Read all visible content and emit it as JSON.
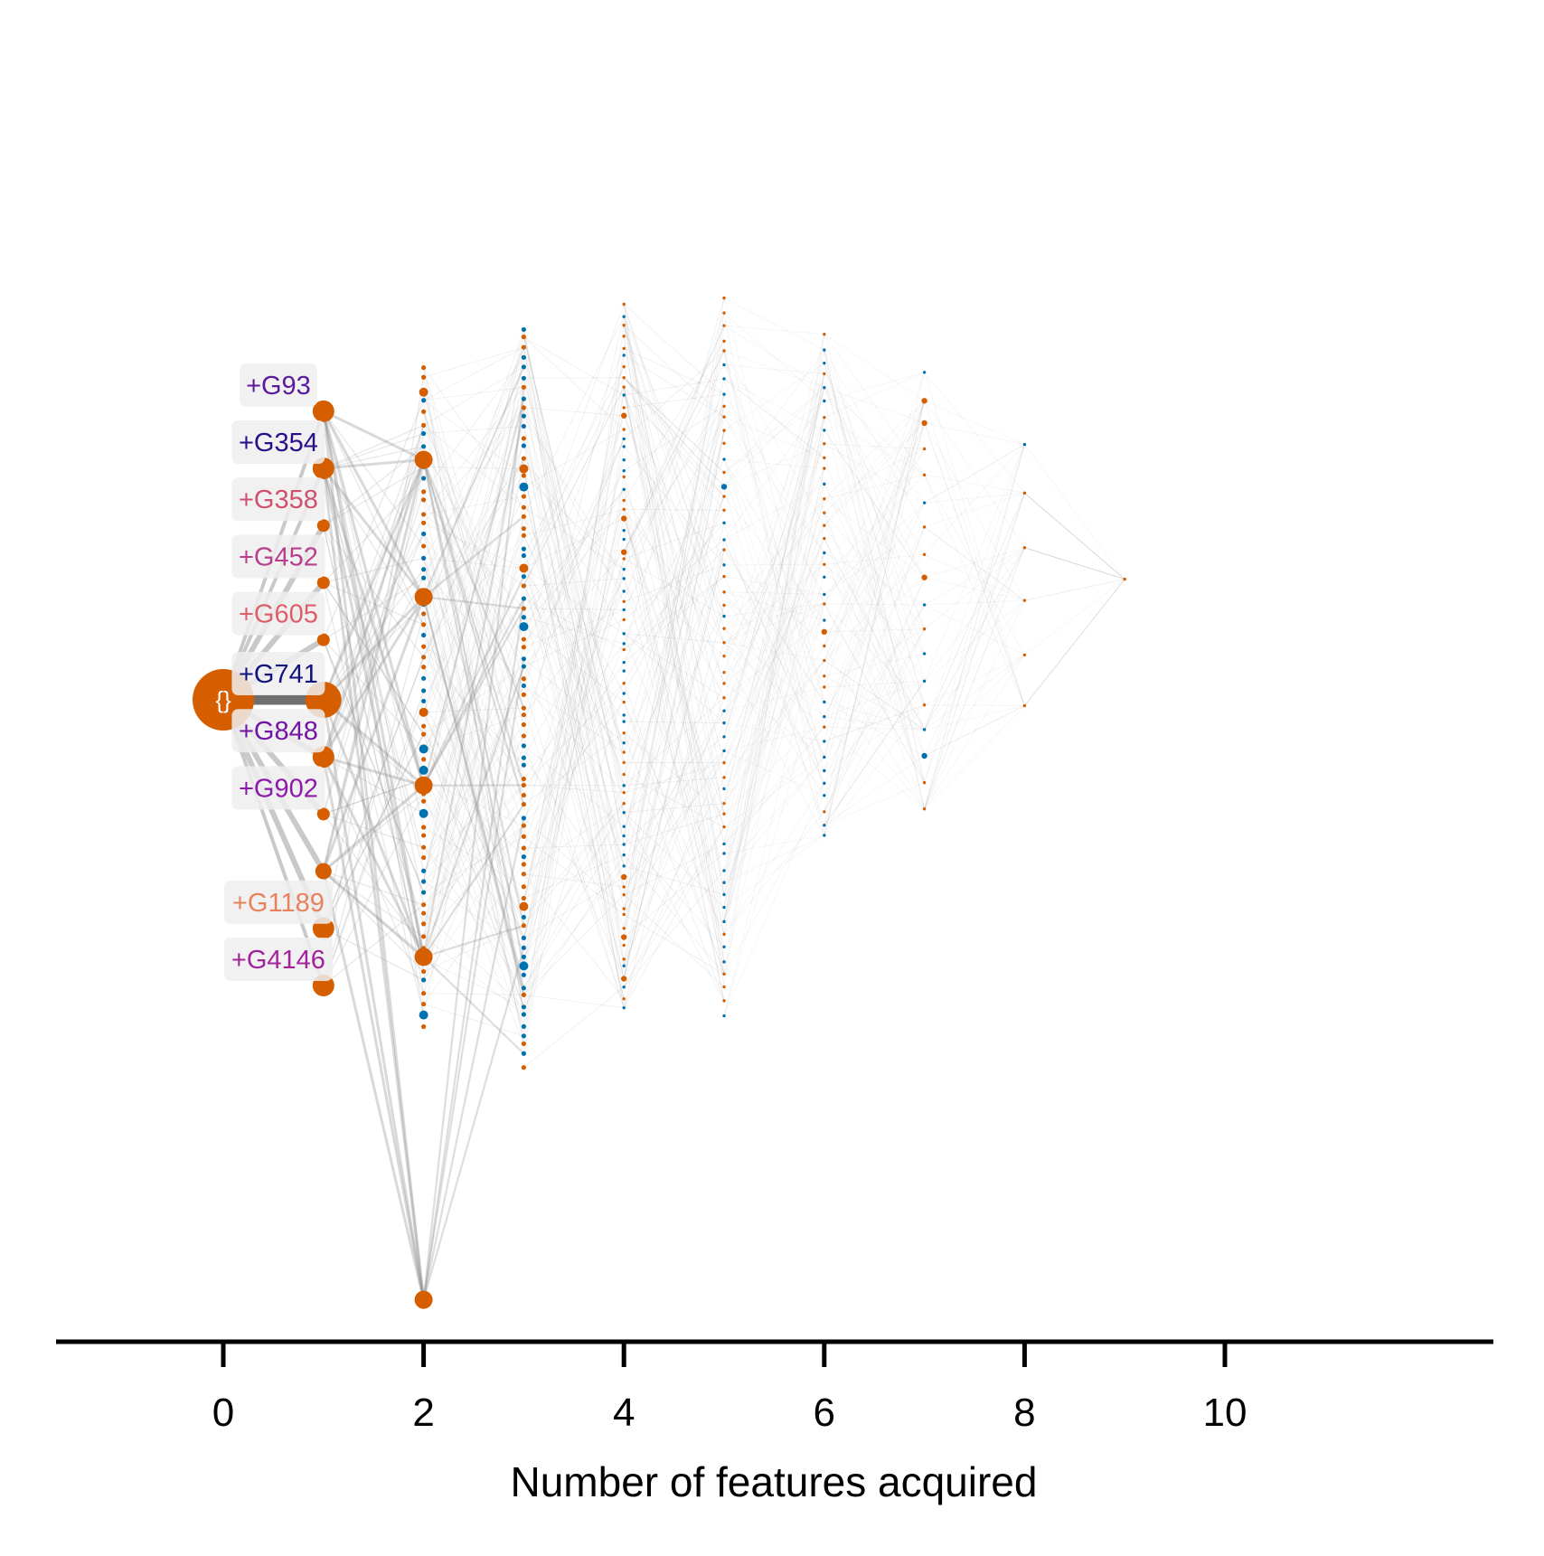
{
  "chart_data": {
    "type": "scatter",
    "description_type": "state-transition graph",
    "xlabel": "Number of features acquired",
    "xticks": [
      0,
      2,
      4,
      6,
      8,
      10
    ],
    "xlim": [
      -3.3,
      12.7
    ],
    "grid": false,
    "legend": "none",
    "root": {
      "x": 0,
      "y": 0,
      "label": "{}"
    },
    "level1": [
      {
        "label": "+G93",
        "y": 5.05,
        "color": "#5b1a9e"
      },
      {
        "label": "+G354",
        "y": 4.05,
        "color": "#2a0f8a"
      },
      {
        "label": "+G358",
        "y": 3.05,
        "color": "#d0506d"
      },
      {
        "label": "+G452",
        "y": 2.05,
        "color": "#b83e8e"
      },
      {
        "label": "+G605",
        "y": 1.05,
        "color": "#dc5f6a"
      },
      {
        "label": "+G741",
        "y": 0.0,
        "color": "#10147f"
      },
      {
        "label": "+G848",
        "y": -1.0,
        "color": "#7214a6"
      },
      {
        "label": "+G902",
        "y": -2.0,
        "color": "#8c1aa8"
      },
      {
        "label": "",
        "y": -3.0,
        "color": "#d55e00"
      },
      {
        "label": "+G1189",
        "y": -4.0,
        "color": "#e8815d"
      },
      {
        "label": "+G4146",
        "y": -5.0,
        "color": "#a2239a"
      }
    ],
    "level2_major": [
      -10.5,
      4.2,
      1.8,
      -1.5,
      -4.5
    ],
    "color_main": "#d55e00",
    "color_secondary": "#0072b2",
    "edge_color": "#888888"
  }
}
